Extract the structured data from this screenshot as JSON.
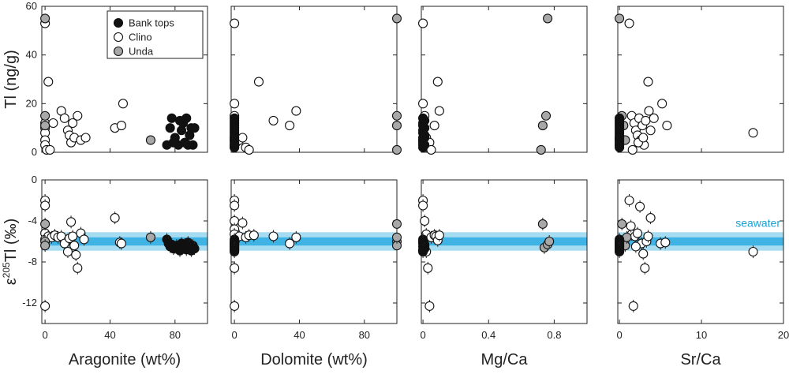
{
  "colors": {
    "bank_tops": "#111111",
    "clino": "#ffffff",
    "unda": "#a8a8a8",
    "seawater_outer": "#a6dcf2",
    "seawater_inner": "#3fb3e3",
    "seawater_text": "#1aa3d6"
  },
  "legend": {
    "location": "upper-right of first top panel",
    "entries": [
      "Bank tops",
      "Clino",
      "Unda"
    ]
  },
  "seawater_label": "seawater",
  "chart_data": [
    {
      "id": "top-aragonite",
      "type": "scatter",
      "ylabel": "Tl (ng/g)",
      "ylim": [
        0,
        60
      ],
      "yticks": [
        0,
        20,
        40,
        60
      ],
      "xlim": [
        -2,
        100
      ],
      "xticks": [
        0,
        40,
        80
      ],
      "series": [
        {
          "name": "Bank tops",
          "x": [
            75,
            77,
            78,
            80,
            82,
            84,
            85,
            86,
            87,
            88,
            89,
            90,
            91,
            92,
            79,
            83
          ],
          "y": [
            3,
            10,
            14,
            6,
            3,
            9,
            12,
            4,
            14,
            3,
            7,
            10,
            3,
            10,
            4,
            13
          ]
        },
        {
          "name": "Clino",
          "x": [
            0,
            0,
            0,
            0,
            0,
            0,
            1,
            2,
            3,
            5,
            10,
            12,
            14,
            15,
            16,
            17,
            18,
            20,
            22,
            25,
            43,
            47,
            48
          ],
          "y": [
            53,
            12,
            10,
            8,
            5,
            3,
            1,
            29,
            1,
            12,
            17,
            14,
            9,
            7,
            4,
            12,
            6,
            15,
            5,
            6,
            10,
            11,
            20
          ]
        },
        {
          "name": "Unda",
          "x": [
            0,
            0,
            0,
            65
          ],
          "y": [
            55,
            15,
            11,
            5
          ]
        }
      ]
    },
    {
      "id": "top-dolomite",
      "type": "scatter",
      "ylim": [
        0,
        60
      ],
      "yticks": [
        0,
        20,
        40,
        60
      ],
      "xlim": [
        -2,
        100
      ],
      "xticks": [
        0,
        40,
        80
      ],
      "series": [
        {
          "name": "Bank tops",
          "x": [
            0,
            0,
            0,
            0,
            0,
            0,
            0,
            0,
            0,
            0,
            0,
            0,
            0,
            0,
            0,
            0
          ],
          "y": [
            3,
            4,
            5,
            6,
            7,
            8,
            9,
            10,
            11,
            12,
            13,
            14,
            2,
            3,
            5,
            6
          ]
        },
        {
          "name": "Clino",
          "x": [
            0,
            0,
            0,
            0,
            1,
            3,
            5,
            7,
            9,
            15,
            24,
            34,
            38
          ],
          "y": [
            53,
            20,
            15,
            2,
            4,
            5,
            6,
            2,
            1,
            29,
            13,
            11,
            17
          ]
        },
        {
          "name": "Unda",
          "x": [
            100,
            100,
            100,
            100
          ],
          "y": [
            55,
            15,
            11,
            1
          ]
        }
      ]
    },
    {
      "id": "top-mgca",
      "type": "scatter",
      "ylim": [
        0,
        60
      ],
      "yticks": [
        0,
        20,
        40,
        60
      ],
      "xlim": [
        -0.01,
        1.0
      ],
      "xticks": [
        0,
        0.4,
        0.8
      ],
      "series": [
        {
          "name": "Bank tops",
          "x": [
            0,
            0,
            0,
            0.01,
            0.01,
            0,
            0,
            0.01,
            0,
            0,
            0.01,
            0,
            0,
            0.01,
            0,
            0
          ],
          "y": [
            3,
            4,
            5,
            6,
            7,
            8,
            9,
            10,
            11,
            12,
            13,
            14,
            2,
            3,
            5,
            6
          ]
        },
        {
          "name": "Clino",
          "x": [
            0,
            0,
            0.01,
            0.02,
            0.03,
            0.04,
            0.05,
            0.07,
            0.09,
            0.1
          ],
          "y": [
            53,
            20,
            15,
            6,
            2,
            4,
            1,
            11,
            29,
            17
          ]
        },
        {
          "name": "Unda",
          "x": [
            0.72,
            0.73,
            0.75,
            0.76
          ],
          "y": [
            1,
            11,
            15,
            55
          ]
        }
      ]
    },
    {
      "id": "top-srca",
      "type": "scatter",
      "ylim": [
        0,
        60
      ],
      "yticks": [
        0,
        20,
        40,
        60
      ],
      "xlim": [
        -0.2,
        20
      ],
      "xticks": [
        0,
        10,
        20
      ],
      "series": [
        {
          "name": "Bank tops",
          "x": [
            0,
            0,
            0,
            0,
            0,
            0,
            0,
            0,
            0,
            0,
            0,
            0,
            0,
            0,
            0,
            0
          ],
          "y": [
            3,
            4,
            5,
            6,
            7,
            8,
            9,
            10,
            11,
            12,
            13,
            14,
            2,
            3,
            5,
            6
          ]
        },
        {
          "name": "Clino",
          "x": [
            1.2,
            1.5,
            1.8,
            2.0,
            2.2,
            2.4,
            2.6,
            2.8,
            3.0,
            3.2,
            3.5,
            3.6,
            3.8,
            4.2,
            5.2,
            5.8,
            16.3,
            1.6,
            2.3,
            2.9
          ],
          "y": [
            53,
            15,
            12,
            9,
            7,
            14,
            5,
            11,
            3,
            13,
            29,
            17,
            9,
            14,
            20,
            11,
            8,
            1,
            4,
            6
          ]
        },
        {
          "name": "Unda",
          "x": [
            0,
            0.3,
            0.5,
            0.7
          ],
          "y": [
            55,
            15,
            11,
            5
          ]
        }
      ]
    },
    {
      "id": "bottom-aragonite",
      "type": "scatter",
      "ylabel": "ε205Tl (‰)",
      "ylim": [
        -14,
        0
      ],
      "yticks": [
        0,
        -4,
        -8,
        -12
      ],
      "xlim": [
        -2,
        100
      ],
      "xticks": [
        0,
        40,
        80
      ],
      "xlabel": "Aragonite (wt%)",
      "seawater": {
        "inner": [
          -6.4,
          -5.6
        ],
        "outer": [
          -6.9,
          -5.1
        ]
      },
      "series": [
        {
          "name": "Bank tops",
          "x": [
            75,
            76,
            77,
            78,
            79,
            80,
            81,
            82,
            83,
            84,
            85,
            86,
            87,
            88,
            89,
            90,
            91,
            92
          ],
          "y": [
            -5.8,
            -6.2,
            -6.5,
            -6.3,
            -6.7,
            -6.6,
            -6.4,
            -6.5,
            -6.9,
            -6.2,
            -6.6,
            -6.3,
            -6.8,
            -6.1,
            -6.5,
            -6.9,
            -6.4,
            -6.7
          ]
        },
        {
          "name": "Clino",
          "x": [
            0,
            0,
            0,
            0,
            0,
            2,
            4,
            6,
            8,
            10,
            12,
            14,
            15,
            16,
            17,
            18,
            19,
            20,
            22,
            24,
            43,
            46,
            47
          ],
          "y": [
            -2.0,
            -2.5,
            -5.2,
            -5.8,
            -12.3,
            -5.5,
            -5.6,
            -5.4,
            -5.6,
            -5.5,
            -6.2,
            -7.0,
            -5.7,
            -4.1,
            -5.5,
            -6.4,
            -7.3,
            -8.6,
            -5.2,
            -5.8,
            -3.7,
            -6.1,
            -6.2
          ]
        },
        {
          "name": "Unda",
          "x": [
            0,
            0,
            0,
            65
          ],
          "y": [
            -4.3,
            -6.0,
            -6.4,
            -5.6
          ]
        }
      ]
    },
    {
      "id": "bottom-dolomite",
      "type": "scatter",
      "ylim": [
        -14,
        0
      ],
      "yticks": [
        0,
        -4,
        -8,
        -12
      ],
      "xlim": [
        -2,
        100
      ],
      "xticks": [
        0,
        40,
        80
      ],
      "xlabel": "Dolomite (wt%)",
      "seawater": {
        "inner": [
          -6.4,
          -5.6
        ],
        "outer": [
          -6.9,
          -5.1
        ]
      },
      "series": [
        {
          "name": "Bank tops",
          "x": [
            0,
            0,
            0,
            0,
            0,
            0,
            0,
            0,
            0,
            0,
            0,
            0
          ],
          "y": [
            -5.8,
            -6.0,
            -6.2,
            -6.4,
            -6.6,
            -6.8,
            -7.0,
            -6.3,
            -6.5,
            -6.1,
            -6.7,
            -6.9
          ]
        },
        {
          "name": "Clino",
          "x": [
            0,
            0,
            0,
            0,
            0,
            0,
            0,
            3,
            5,
            7,
            9,
            12,
            24,
            34,
            38
          ],
          "y": [
            -2.0,
            -2.5,
            -4.0,
            -4.8,
            -8.6,
            -12.3,
            -5.3,
            -5.5,
            -4.2,
            -5.6,
            -5.4,
            -5.4,
            -5.5,
            -6.2,
            -5.6
          ]
        },
        {
          "name": "Unda",
          "x": [
            100,
            100,
            100,
            100
          ],
          "y": [
            -4.3,
            -6.0,
            -6.4,
            -5.6
          ]
        }
      ]
    },
    {
      "id": "bottom-mgca",
      "type": "scatter",
      "ylim": [
        -14,
        0
      ],
      "yticks": [
        0,
        -4,
        -8,
        -12
      ],
      "xlim": [
        -0.01,
        1.0
      ],
      "xticks": [
        0,
        0.4,
        0.8
      ],
      "xlabel": "Mg/Ca",
      "seawater": {
        "inner": [
          -6.4,
          -5.6
        ],
        "outer": [
          -6.9,
          -5.1
        ]
      },
      "series": [
        {
          "name": "Bank tops",
          "x": [
            0,
            0,
            0,
            0.01,
            0.01,
            0,
            0,
            0.01,
            0,
            0,
            0.01,
            0
          ],
          "y": [
            -5.8,
            -6.0,
            -6.2,
            -6.4,
            -6.6,
            -6.8,
            -7.0,
            -6.3,
            -6.5,
            -6.1,
            -6.7,
            -6.9
          ]
        },
        {
          "name": "Clino",
          "x": [
            0,
            0,
            0.01,
            0.02,
            0.03,
            0.04,
            0.05,
            0.07,
            0.08,
            0.09,
            0.1,
            0.02
          ],
          "y": [
            -2.0,
            -2.5,
            -4.0,
            -5.3,
            -8.6,
            -12.3,
            -5.6,
            -5.4,
            -5.5,
            -5.9,
            -5.4,
            -7.0
          ]
        },
        {
          "name": "Unda",
          "x": [
            0.73,
            0.74,
            0.76,
            0.77
          ],
          "y": [
            -4.3,
            -6.6,
            -6.3,
            -6.0
          ]
        }
      ]
    },
    {
      "id": "bottom-srca",
      "type": "scatter",
      "ylim": [
        -14,
        0
      ],
      "yticks": [
        0,
        -4,
        -8,
        -12
      ],
      "xlim": [
        -0.2,
        20
      ],
      "xticks": [
        0,
        10,
        20
      ],
      "xlabel": "Sr/Ca",
      "seawater": {
        "inner": [
          -6.4,
          -5.6
        ],
        "outer": [
          -6.9,
          -5.1
        ]
      },
      "series": [
        {
          "name": "Bank tops",
          "x": [
            0,
            0,
            0,
            0,
            0,
            0,
            0,
            0,
            0,
            0,
            0,
            0
          ],
          "y": [
            -5.8,
            -6.0,
            -6.2,
            -6.4,
            -6.6,
            -6.8,
            -7.0,
            -6.3,
            -6.5,
            -6.1,
            -6.7,
            -6.9
          ]
        },
        {
          "name": "Clino",
          "x": [
            1.2,
            1.5,
            1.7,
            1.9,
            2.2,
            2.5,
            2.7,
            2.9,
            3.1,
            3.3,
            3.5,
            3.8,
            5.0,
            5.6,
            16.3,
            1.4,
            2.0
          ],
          "y": [
            -2.0,
            -5.3,
            -12.3,
            -5.5,
            -5.2,
            -2.6,
            -6.2,
            -7.2,
            -8.6,
            -6.0,
            -5.5,
            -3.7,
            -6.2,
            -6.1,
            -7.0,
            -4.5,
            -6.5
          ]
        },
        {
          "name": "Unda",
          "x": [
            0.3,
            0.5,
            0.7,
            0.9
          ],
          "y": [
            -4.3,
            -6.0,
            -6.4,
            -5.6
          ]
        }
      ]
    }
  ]
}
